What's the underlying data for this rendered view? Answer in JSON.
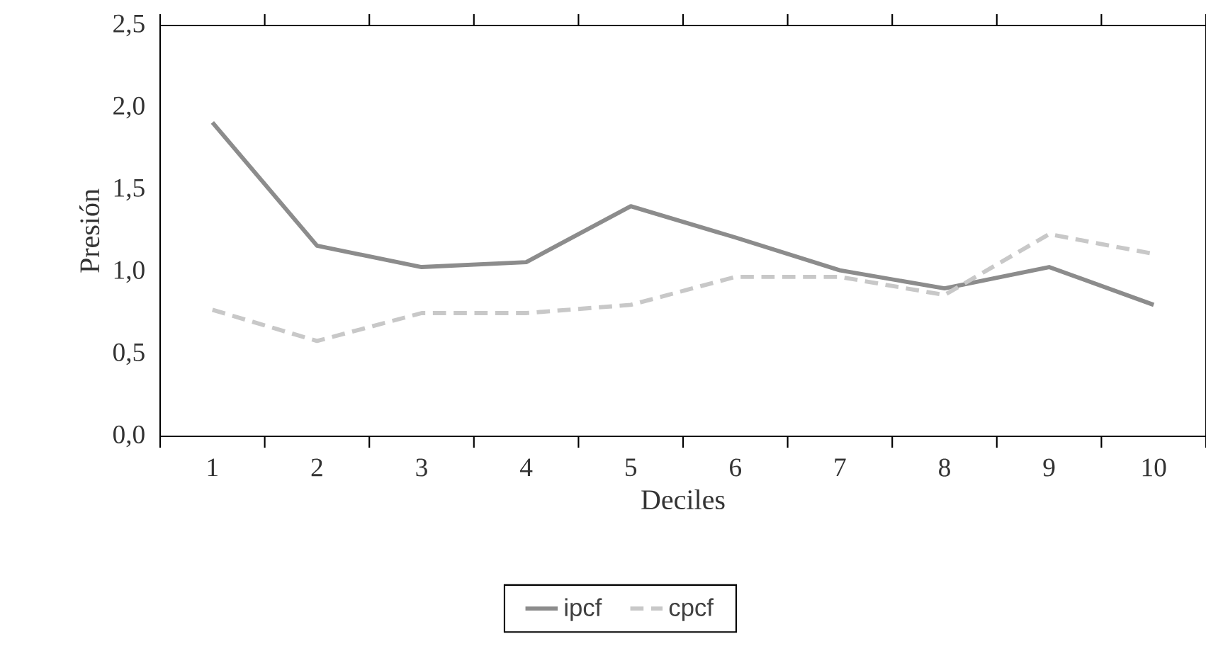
{
  "chart_data": {
    "type": "line",
    "xlabel": "Deciles",
    "ylabel": "Presión",
    "categories": [
      "1",
      "2",
      "3",
      "4",
      "5",
      "6",
      "7",
      "8",
      "9",
      "10"
    ],
    "series": [
      {
        "name": "ipcf",
        "color": "#8c8c8c",
        "line_style": "solid",
        "values": [
          1.91,
          1.16,
          1.03,
          1.06,
          1.4,
          1.21,
          1.01,
          0.9,
          1.03,
          0.8
        ]
      },
      {
        "name": "cpcf",
        "color": "#c8c8c8",
        "line_style": "dashed",
        "values": [
          0.77,
          0.58,
          0.75,
          0.75,
          0.8,
          0.97,
          0.97,
          0.86,
          1.23,
          1.11
        ]
      }
    ],
    "ylim": [
      0,
      2.5
    ],
    "yticks": [
      {
        "value": 0,
        "label": "0,0"
      },
      {
        "value": 0.5,
        "label": "0,5"
      },
      {
        "value": 1,
        "label": "1,0"
      },
      {
        "value": 1.5,
        "label": "1,5"
      },
      {
        "value": 2,
        "label": "2,0"
      },
      {
        "value": 2.5,
        "label": "2,5"
      }
    ],
    "grid": false,
    "legend": "bottom",
    "marker": "none"
  }
}
